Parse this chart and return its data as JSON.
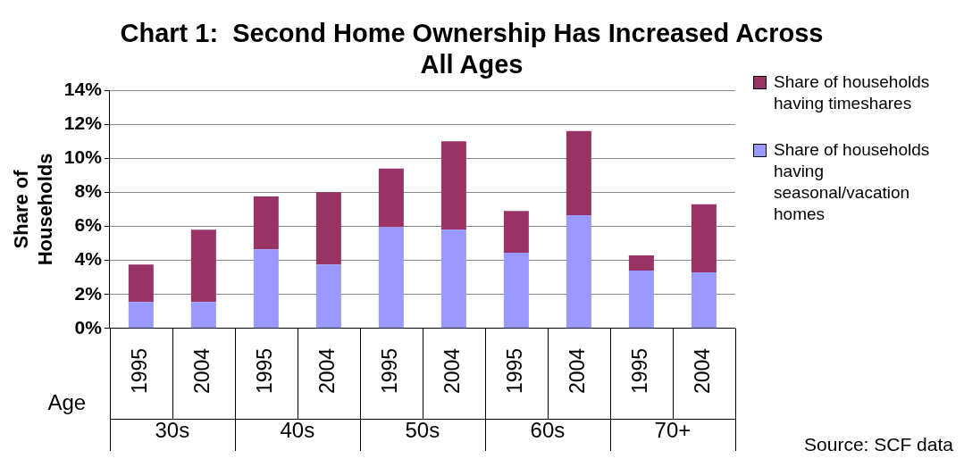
{
  "chart_data": {
    "type": "bar",
    "title": "Chart 1:  Second Home Ownership Has Increased Across All Ages",
    "ylabel": "Share of Households",
    "xlabel": "Age",
    "categories": [
      "1995",
      "2004",
      "1995",
      "2004",
      "1995",
      "2004",
      "1995",
      "2004",
      "1995",
      "2004"
    ],
    "series": [
      {
        "name": "Share of households having seasonal/vacation homes",
        "color": "#9999ff",
        "values": [
          1.55,
          1.55,
          4.65,
          3.75,
          5.95,
          5.8,
          4.45,
          6.65,
          3.4,
          3.3
        ]
      },
      {
        "name": "Share of households having timeshares",
        "color": "#993366",
        "values": [
          2.2,
          4.25,
          3.1,
          4.25,
          3.45,
          5.2,
          2.45,
          4.95,
          0.9,
          4.0
        ]
      }
    ],
    "stacked": true,
    "ylim": [
      0,
      14
    ],
    "yticks": [
      {
        "value": 0,
        "label": "0%"
      },
      {
        "value": 2,
        "label": "2%"
      },
      {
        "value": 4,
        "label": "4%"
      },
      {
        "value": 6,
        "label": "6%"
      },
      {
        "value": 8,
        "label": "8%"
      },
      {
        "value": 10,
        "label": "10%"
      },
      {
        "value": 12,
        "label": "12%"
      },
      {
        "value": 14,
        "label": "14%"
      }
    ],
    "grid": "y",
    "legend": "right",
    "annotations": [
      "30s",
      "40s",
      "50s",
      "60s",
      "70+",
      "Source: SCF data"
    ]
  }
}
